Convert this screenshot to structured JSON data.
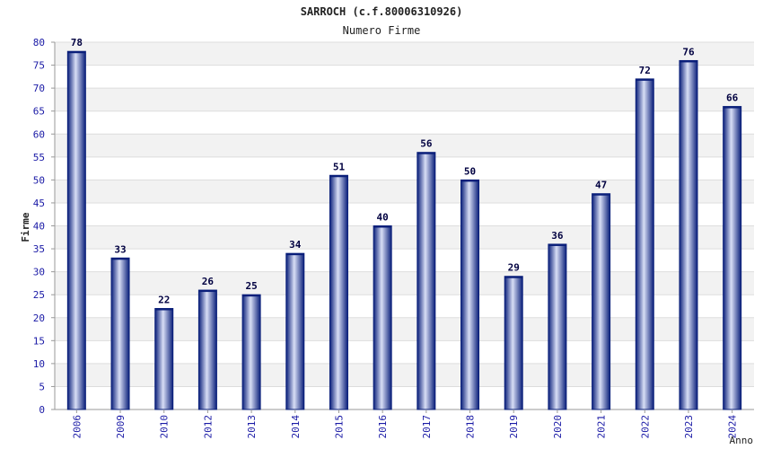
{
  "chart_data": {
    "type": "bar",
    "title": "SARROCH (c.f.80006310926)",
    "subtitle": "Numero Firme",
    "xlabel": "Anno",
    "ylabel": "Firme",
    "categories": [
      "2006",
      "2009",
      "2010",
      "2012",
      "2013",
      "2014",
      "2015",
      "2016",
      "2017",
      "2018",
      "2019",
      "2020",
      "2021",
      "2022",
      "2023",
      "2024"
    ],
    "values": [
      78,
      33,
      22,
      26,
      25,
      34,
      51,
      40,
      56,
      50,
      29,
      36,
      47,
      72,
      76,
      66
    ],
    "ylim": [
      0,
      80
    ],
    "yticks": [
      0,
      5,
      10,
      15,
      20,
      25,
      30,
      35,
      40,
      45,
      50,
      55,
      60,
      65,
      70,
      75,
      80
    ],
    "grid": true,
    "colors": {
      "bar_dark": "#0a1f7a",
      "bar_mid": "#3d52b5",
      "bar_light": "#d8def5",
      "tick_label": "#1a1aa6",
      "value_label": "#000040",
      "band_alt": "#f2f2f2",
      "axis": "#999999"
    }
  }
}
